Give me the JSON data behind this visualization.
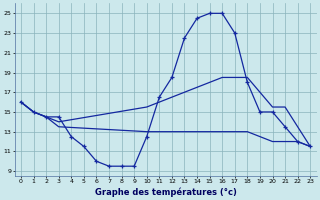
{
  "xlabel": "Graphe des températures (°c)",
  "bg_color": "#cce8ec",
  "grid_color": "#8ab4bc",
  "line_color": "#1428a0",
  "xlim": [
    -0.5,
    23.5
  ],
  "ylim": [
    8.5,
    26.0
  ],
  "xticks": [
    0,
    1,
    2,
    3,
    4,
    5,
    6,
    7,
    8,
    9,
    10,
    11,
    12,
    13,
    14,
    15,
    16,
    17,
    18,
    19,
    20,
    21,
    22,
    23
  ],
  "yticks": [
    9,
    11,
    13,
    15,
    17,
    19,
    21,
    23,
    25
  ],
  "curve1_x": [
    0,
    1,
    2,
    3,
    4,
    5,
    6,
    7,
    8,
    9,
    10,
    11,
    12,
    13,
    14,
    15,
    16,
    17,
    18,
    19,
    20,
    21,
    22,
    23
  ],
  "curve1_y": [
    16.0,
    15.0,
    14.5,
    14.5,
    12.5,
    11.5,
    10.0,
    9.5,
    9.5,
    9.5,
    12.5,
    16.5,
    18.5,
    22.5,
    24.5,
    25.0,
    25.0,
    23.0,
    18.0,
    15.0,
    15.0,
    13.5,
    12.0,
    11.5
  ],
  "curve2_x": [
    0,
    1,
    2,
    3,
    10,
    14,
    15,
    16,
    17,
    18,
    20,
    21,
    22,
    23
  ],
  "curve2_y": [
    16.0,
    15.0,
    14.5,
    14.0,
    15.5,
    17.5,
    18.0,
    18.5,
    18.5,
    18.5,
    15.5,
    15.5,
    13.5,
    11.5
  ],
  "curve3_x": [
    0,
    1,
    2,
    3,
    10,
    14,
    15,
    16,
    17,
    18,
    20,
    21,
    22,
    23
  ],
  "curve3_y": [
    16.0,
    15.0,
    14.5,
    13.5,
    13.0,
    13.0,
    13.0,
    13.0,
    13.0,
    13.0,
    12.0,
    12.0,
    12.0,
    11.5
  ]
}
